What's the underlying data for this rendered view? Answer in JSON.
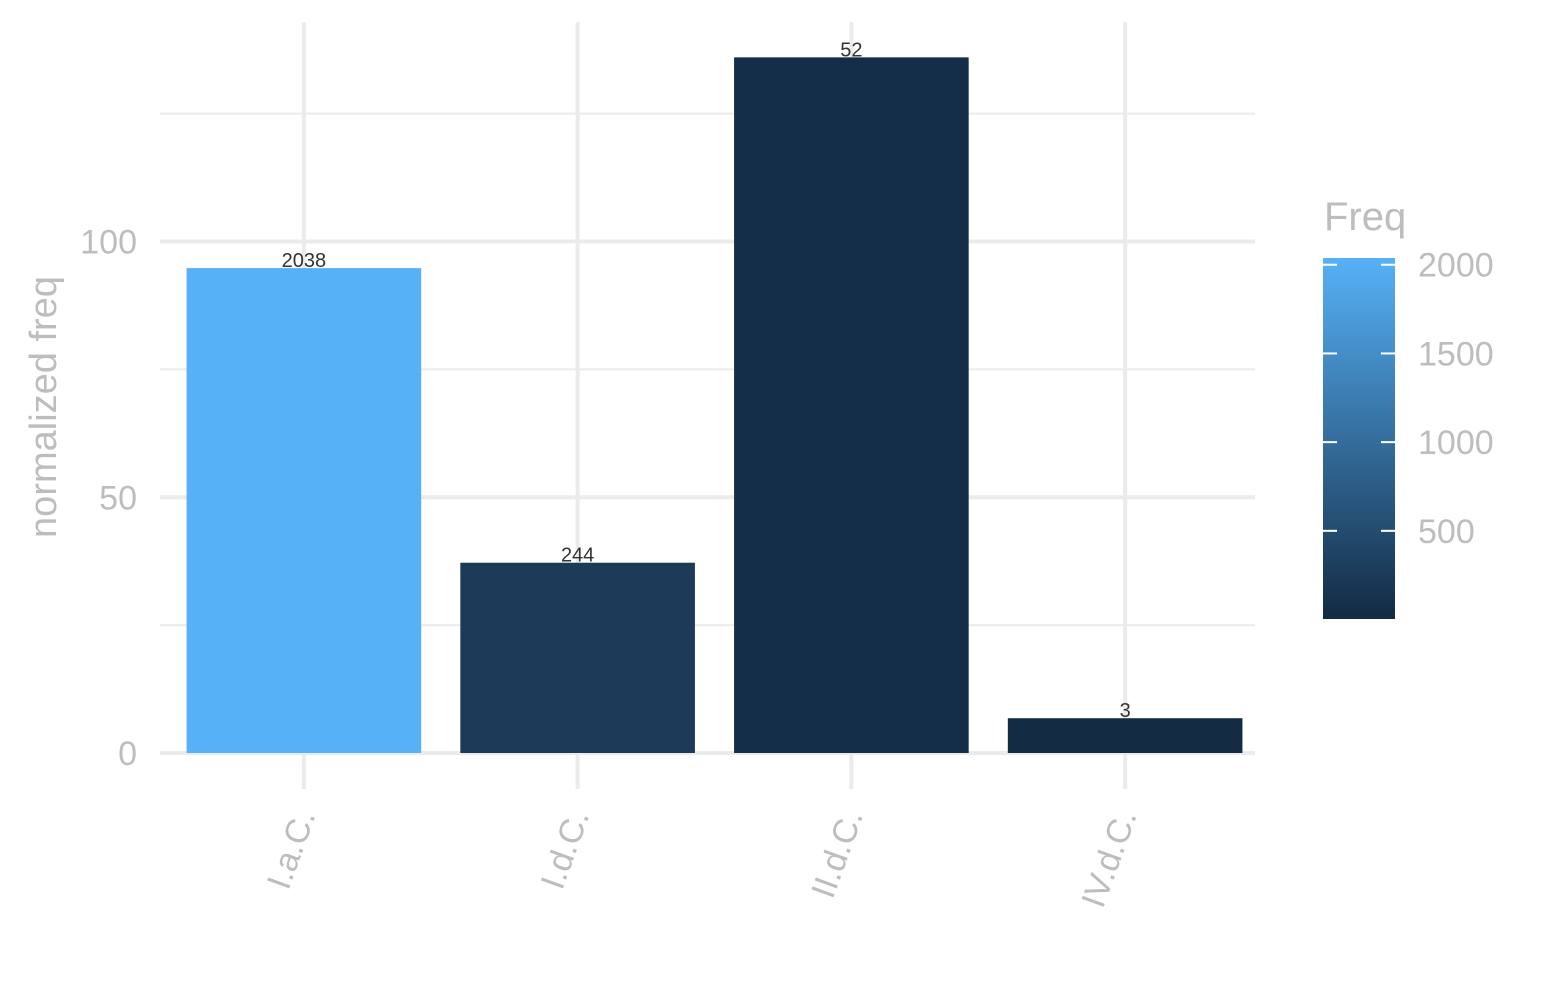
{
  "chart_data": {
    "type": "bar",
    "categories": [
      "I.a.C.",
      "I.d.C.",
      "II.d.C.",
      "IV.d.C."
    ],
    "values": [
      94.8,
      37.2,
      136.0,
      6.8
    ],
    "bar_labels": [
      "2038",
      "244",
      "52",
      "3"
    ],
    "freq": [
      2038,
      244,
      52,
      3
    ],
    "xlabel": "",
    "ylabel": "normalized freq",
    "ylim": [
      0,
      140
    ],
    "y_ticks": [
      0,
      50,
      100
    ],
    "y_tick_labels": [
      "0",
      "50",
      "100"
    ],
    "y_minor_ticks": [
      25,
      75,
      125
    ],
    "grid": true,
    "legend": {
      "title": "Freq",
      "placement": "right",
      "range": [
        3,
        2038
      ],
      "ticks": [
        500,
        1000,
        1500,
        2000
      ],
      "tick_labels": [
        "500",
        "1000",
        "1500",
        "2000"
      ],
      "color_low": "#132b43",
      "color_high": "#56b1f7"
    }
  }
}
